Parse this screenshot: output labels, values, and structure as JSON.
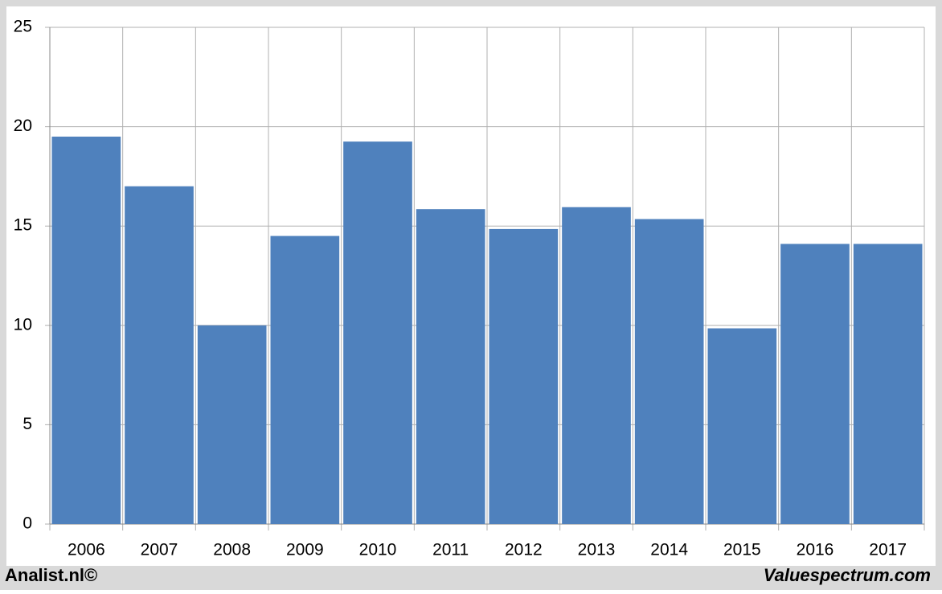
{
  "chart_data": {
    "type": "bar",
    "categories": [
      "2006",
      "2007",
      "2008",
      "2009",
      "2010",
      "2011",
      "2012",
      "2013",
      "2014",
      "2015",
      "2016",
      "2017"
    ],
    "values": [
      19.5,
      17.0,
      10.0,
      14.5,
      19.25,
      15.85,
      14.85,
      15.95,
      15.35,
      9.85,
      14.1,
      14.1
    ],
    "color": "#4f81bd",
    "ylim": [
      0,
      25
    ],
    "yticks": [
      0,
      5,
      10,
      15,
      20,
      25
    ],
    "grid": true
  },
  "footer": {
    "left": "Analist.nl©",
    "right": "Valuespectrum.com"
  }
}
